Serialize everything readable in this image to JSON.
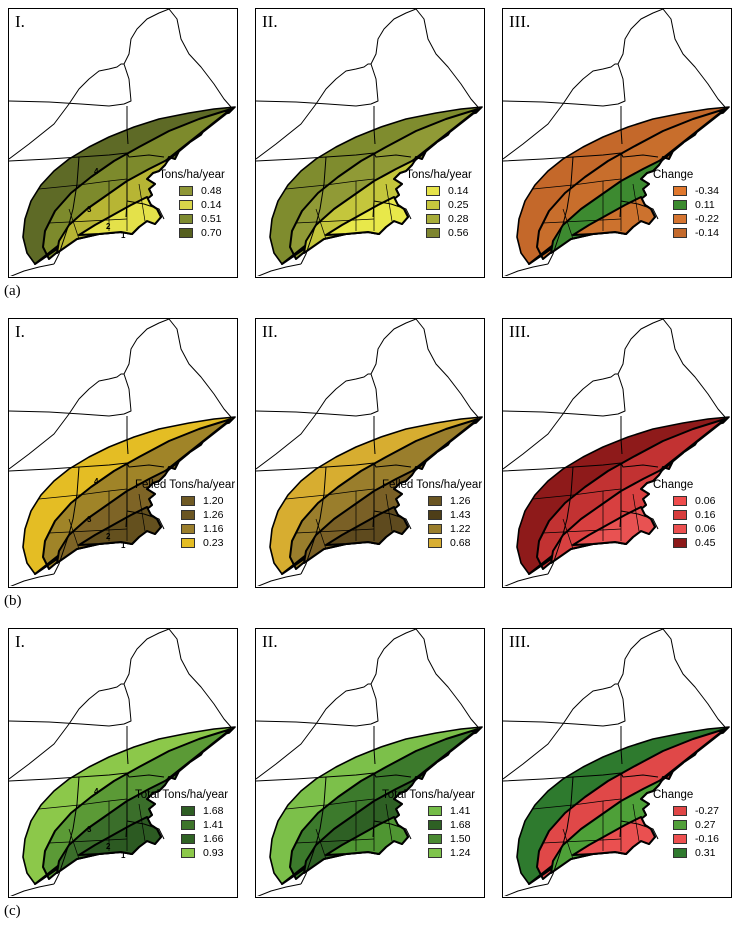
{
  "rows": [
    {
      "label": "(a)",
      "panels": [
        {
          "roman": "I.",
          "legend_title": "Tons/ha/year",
          "zone_labels": [
            "4",
            "3",
            "2",
            "1"
          ],
          "zone_colors": [
            "#5e6a26",
            "#7d8a2c",
            "#b7b534",
            "#e4e14a"
          ],
          "entries": [
            {
              "color": "#8e9636",
              "value": "0.48"
            },
            {
              "color": "#d9d64a",
              "value": "0.14"
            },
            {
              "color": "#7e8b30",
              "value": "0.51"
            },
            {
              "color": "#56601f",
              "value": "0.70"
            }
          ]
        },
        {
          "roman": "II.",
          "legend_title": "Tons/ha/year",
          "zone_labels": [],
          "zone_colors": [
            "#7f8c2e",
            "#909a36",
            "#c4c63c",
            "#e8e84a"
          ],
          "entries": [
            {
              "color": "#e6e34a",
              "value": "0.14"
            },
            {
              "color": "#c7c63e",
              "value": "0.25"
            },
            {
              "color": "#a8ad3a",
              "value": "0.28"
            },
            {
              "color": "#7e8530",
              "value": "0.56"
            }
          ]
        },
        {
          "roman": "III.",
          "legend_title": "Change",
          "zone_labels": [],
          "zone_colors": [
            "#c4682a",
            "#c86e2c",
            "#3d8a30",
            "#cc722e"
          ],
          "entries": [
            {
              "color": "#e0782e",
              "value": "-0.34"
            },
            {
              "color": "#3b8a2e",
              "value": "0.11"
            },
            {
              "color": "#d57430",
              "value": "-0.22"
            },
            {
              "color": "#c46a2c",
              "value": "-0.14"
            }
          ]
        }
      ]
    },
    {
      "label": "(b)",
      "panels": [
        {
          "roman": "I.",
          "legend_title": "Felled Tons/ha/year",
          "zone_labels": [
            "4",
            "3",
            "2",
            "1"
          ],
          "zone_colors": [
            "#e4bd24",
            "#a08428",
            "#7e6426",
            "#64501e"
          ],
          "entries": [
            {
              "color": "#6f5a24",
              "value": "1.20"
            },
            {
              "color": "#6a5522",
              "value": "1.26"
            },
            {
              "color": "#9a7e2c",
              "value": "1.16"
            },
            {
              "color": "#e4bd24",
              "value": "0.23"
            }
          ]
        },
        {
          "roman": "II.",
          "legend_title": "Felled Tons/ha/year",
          "zone_labels": [],
          "zone_colors": [
            "#d7ad30",
            "#9a7e2c",
            "#7a6026",
            "#5e4a1e"
          ],
          "entries": [
            {
              "color": "#6a5522",
              "value": "1.26"
            },
            {
              "color": "#4e3e18",
              "value": "1.43"
            },
            {
              "color": "#9a7e2c",
              "value": "1.22"
            },
            {
              "color": "#d8ae32",
              "value": "0.68"
            }
          ]
        },
        {
          "roman": "III.",
          "legend_title": "Change",
          "zone_labels": [],
          "zone_colors": [
            "#8e1a1a",
            "#c23232",
            "#d84040",
            "#e85252"
          ],
          "entries": [
            {
              "color": "#ef4c4c",
              "value": "0.06"
            },
            {
              "color": "#d63b3b",
              "value": "0.16"
            },
            {
              "color": "#ec5050",
              "value": "0.06"
            },
            {
              "color": "#8c1818",
              "value": "0.45"
            }
          ]
        }
      ]
    },
    {
      "label": "(c)",
      "panels": [
        {
          "roman": "I.",
          "legend_title": "Total Tons/ha/year",
          "zone_labels": [
            "4",
            "3",
            "2",
            "1"
          ],
          "zone_colors": [
            "#8cc84a",
            "#5b9a36",
            "#3a6e2a",
            "#2c5a22"
          ],
          "entries": [
            {
              "color": "#2e5e24",
              "value": "1.68"
            },
            {
              "color": "#3d742a",
              "value": "1.41"
            },
            {
              "color": "#2f6224",
              "value": "1.66"
            },
            {
              "color": "#8cc84a",
              "value": "0.93"
            }
          ]
        },
        {
          "roman": "II.",
          "legend_title": "Total Tons/ha/year",
          "zone_labels": [],
          "zone_colors": [
            "#7cc04a",
            "#3c7a2c",
            "#2e6024",
            "#4f9632"
          ],
          "entries": [
            {
              "color": "#74bc48",
              "value": "1.41"
            },
            {
              "color": "#2e6024",
              "value": "1.68"
            },
            {
              "color": "#4a8a32",
              "value": "1.50"
            },
            {
              "color": "#7fc44c",
              "value": "1.24"
            }
          ]
        },
        {
          "roman": "III.",
          "legend_title": "Change",
          "zone_labels": [],
          "zone_colors": [
            "#2e7a2e",
            "#e04848",
            "#4ea038",
            "#ea5050"
          ],
          "entries": [
            {
              "color": "#e04646",
              "value": "-0.27"
            },
            {
              "color": "#52a03a",
              "value": "0.27"
            },
            {
              "color": "#ee5050",
              "value": "-0.16"
            },
            {
              "color": "#2f7a2e",
              "value": "0.31"
            }
          ]
        }
      ]
    }
  ]
}
